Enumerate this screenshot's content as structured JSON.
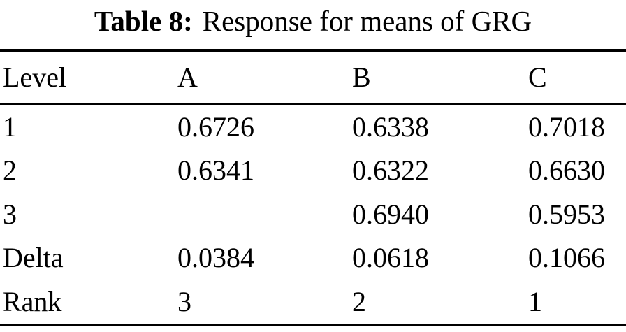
{
  "caption": {
    "label": "Table 8:",
    "text": "Response for means of GRG"
  },
  "table": {
    "columns": [
      "Level",
      "A",
      "B",
      "C"
    ],
    "rows": [
      [
        "1",
        "0.6726",
        "0.6338",
        "0.7018"
      ],
      [
        "2",
        "0.6341",
        "0.6322",
        "0.6630"
      ],
      [
        "3",
        "",
        "0.6940",
        "0.5953"
      ],
      [
        "Delta",
        "0.0384",
        "0.0618",
        "0.1066"
      ],
      [
        "Rank",
        "3",
        "2",
        "1"
      ]
    ]
  }
}
